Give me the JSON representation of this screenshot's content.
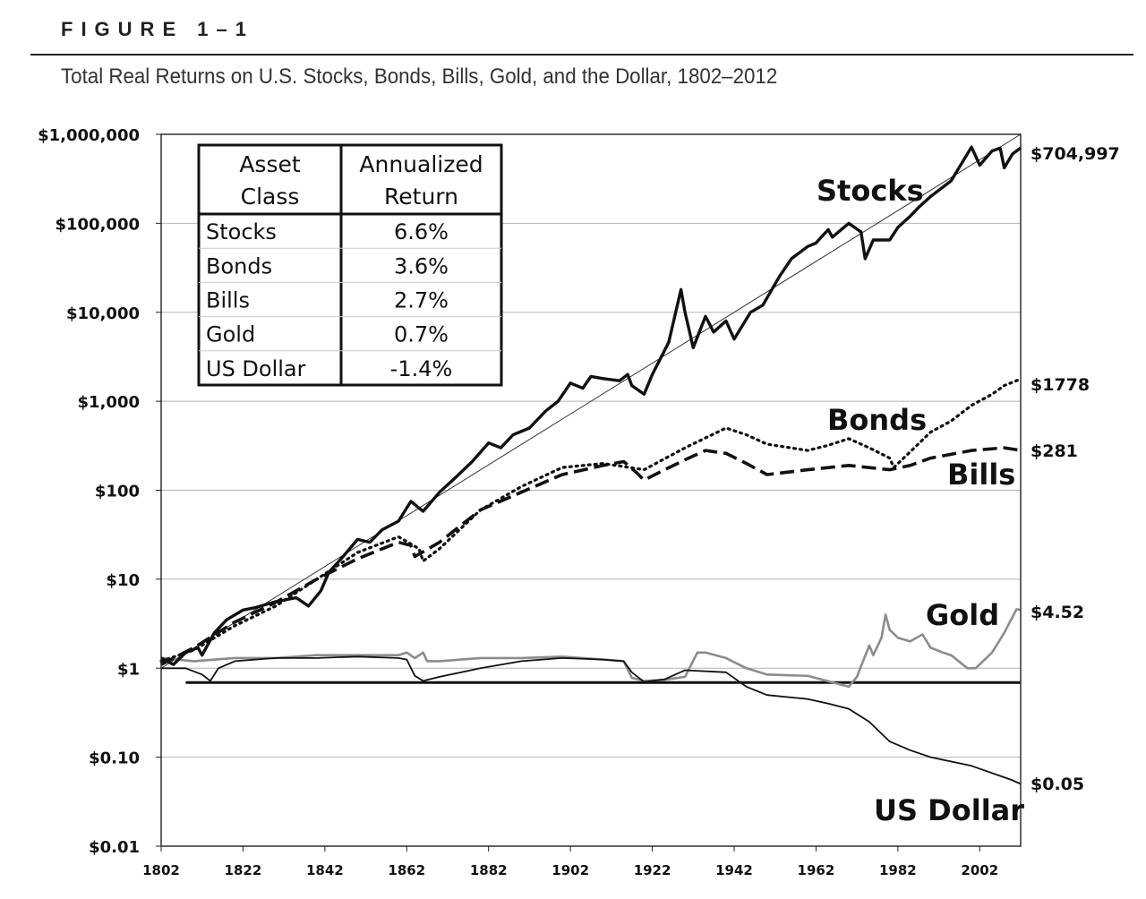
{
  "figure": {
    "label": "FIGURE 1–1",
    "title": "Total Real Returns on U.S. Stocks, Bonds, Bills, Gold, and the Dollar, 1802–2012"
  },
  "colors": {
    "stocks": "#111111",
    "bonds": "#111111",
    "bills": "#111111",
    "gold": "#8c8c8c",
    "dollar": "#111111",
    "grid": "#b5b5b5"
  },
  "chart_data": {
    "type": "line",
    "title": "Total Real Returns on U.S. Stocks, Bonds, Bills, Gold, and the Dollar, 1802–2012",
    "xlabel": "",
    "ylabel": "",
    "yscale": "log",
    "xlim": [
      1802,
      2012
    ],
    "ylim": [
      0.01,
      1000000
    ],
    "xticks": [
      1802,
      1822,
      1842,
      1862,
      1882,
      1902,
      1922,
      1942,
      1962,
      1982,
      2002
    ],
    "yticks": [
      {
        "value": 0.01,
        "label": "$0.01"
      },
      {
        "value": 0.1,
        "label": "$0.10"
      },
      {
        "value": 1,
        "label": "$1"
      },
      {
        "value": 10,
        "label": "$10"
      },
      {
        "value": 100,
        "label": "$100"
      },
      {
        "value": 1000,
        "label": "$1,000"
      },
      {
        "value": 10000,
        "label": "$10,000"
      },
      {
        "value": 100000,
        "label": "$100,000"
      },
      {
        "value": 1000000,
        "label": "$1,000,000"
      }
    ],
    "grid": true,
    "legend_table": {
      "headers": [
        [
          "Asset",
          "Class"
        ],
        [
          "Annualized",
          "Return"
        ]
      ],
      "rows": [
        {
          "asset": "Stocks",
          "return": "6.6%"
        },
        {
          "asset": "Bonds",
          "return": "3.6%"
        },
        {
          "asset": "Bills",
          "return": "2.7%"
        },
        {
          "asset": "Gold",
          "return": "0.7%"
        },
        {
          "asset": "US Dollar",
          "return": "-1.4%"
        }
      ],
      "position": "top-left"
    },
    "reference_lines": [
      {
        "name": "stocks-trend",
        "x": [
          1802,
          2012
        ],
        "y": [
          1,
          1000000
        ]
      },
      {
        "name": "dollar-baseline",
        "x": [
          1808,
          2012
        ],
        "y": [
          0.69,
          0.69
        ]
      }
    ],
    "series": [
      {
        "name": "Stocks",
        "label": "Stocks",
        "end_label": "$704,997",
        "style": "solid-thick",
        "x": [
          1802,
          1805,
          1808,
          1811,
          1812,
          1815,
          1818,
          1822,
          1825,
          1830,
          1835,
          1838,
          1841,
          1843,
          1846,
          1850,
          1853,
          1856,
          1860,
          1863,
          1866,
          1870,
          1874,
          1878,
          1882,
          1885,
          1888,
          1892,
          1896,
          1899,
          1902,
          1905,
          1907,
          1910,
          1914,
          1916,
          1917,
          1920,
          1922,
          1926,
          1929,
          1930,
          1932,
          1935,
          1937,
          1940,
          1942,
          1946,
          1949,
          1953,
          1956,
          1960,
          1962,
          1965,
          1966,
          1970,
          1973,
          1974,
          1976,
          1980,
          1982,
          1985,
          1987,
          1990,
          1995,
          2000,
          2002,
          2005,
          2007,
          2008,
          2010,
          2012
        ],
        "y": [
          1.3,
          1.1,
          1.5,
          1.7,
          1.4,
          2.5,
          3.5,
          4.5,
          4.8,
          5.6,
          6.2,
          5.0,
          7.4,
          12,
          17,
          28,
          26,
          36,
          45,
          75,
          58,
          95,
          140,
          210,
          340,
          300,
          420,
          500,
          780,
          1000,
          1600,
          1400,
          1900,
          1800,
          1700,
          2000,
          1500,
          1200,
          2000,
          4600,
          18000,
          10000,
          4000,
          9000,
          6000,
          8000,
          5000,
          10000,
          12000,
          25000,
          40000,
          55000,
          60000,
          85000,
          70000,
          100000,
          80000,
          40000,
          65000,
          65000,
          90000,
          120000,
          150000,
          200000,
          300000,
          720000,
          450000,
          650000,
          700000,
          420000,
          600000,
          704997
        ]
      },
      {
        "name": "Bonds",
        "label": "Bonds",
        "end_label": "$1778",
        "style": "dotted",
        "x": [
          1802,
          1810,
          1820,
          1830,
          1840,
          1850,
          1860,
          1865,
          1866,
          1870,
          1880,
          1890,
          1900,
          1910,
          1920,
          1930,
          1940,
          1945,
          1950,
          1960,
          1965,
          1970,
          1975,
          1980,
          1981,
          1985,
          1990,
          1995,
          2000,
          2005,
          2008,
          2012
        ],
        "y": [
          1.2,
          1.6,
          3.0,
          5.0,
          10,
          20,
          30,
          22,
          16,
          22,
          60,
          110,
          180,
          200,
          170,
          300,
          500,
          420,
          330,
          280,
          320,
          380,
          300,
          230,
          180,
          270,
          450,
          600,
          900,
          1200,
          1500,
          1778
        ]
      },
      {
        "name": "Bills",
        "label": "Bills",
        "end_label": "$281",
        "style": "dashed",
        "x": [
          1802,
          1810,
          1820,
          1830,
          1840,
          1850,
          1860,
          1863,
          1864,
          1870,
          1880,
          1890,
          1900,
          1910,
          1915,
          1918,
          1920,
          1925,
          1930,
          1935,
          1940,
          1945,
          1950,
          1960,
          1970,
          1980,
          1985,
          1990,
          2000,
          2008,
          2012
        ],
        "y": [
          1.1,
          1.7,
          3.3,
          5.5,
          10,
          17,
          26,
          24,
          18,
          26,
          60,
          95,
          150,
          190,
          210,
          160,
          130,
          170,
          220,
          280,
          260,
          200,
          150,
          170,
          190,
          170,
          190,
          230,
          280,
          300,
          281
        ]
      },
      {
        "name": "Gold",
        "label": "Gold",
        "end_label": "$4.52",
        "style": "solid-gray",
        "x": [
          1802,
          1810,
          1820,
          1830,
          1840,
          1850,
          1860,
          1862,
          1864,
          1866,
          1867,
          1870,
          1880,
          1890,
          1900,
          1910,
          1915,
          1917,
          1920,
          1925,
          1930,
          1933,
          1935,
          1940,
          1945,
          1950,
          1960,
          1970,
          1972,
          1975,
          1976,
          1978,
          1979,
          1980,
          1982,
          1985,
          1988,
          1990,
          1993,
          1995,
          1999,
          2001,
          2005,
          2008,
          2011,
          2012
        ],
        "y": [
          1.3,
          1.2,
          1.3,
          1.3,
          1.4,
          1.4,
          1.4,
          1.5,
          1.3,
          1.5,
          1.2,
          1.2,
          1.3,
          1.3,
          1.35,
          1.25,
          1.2,
          0.78,
          0.72,
          0.74,
          0.8,
          1.5,
          1.5,
          1.3,
          1.0,
          0.85,
          0.82,
          0.62,
          0.8,
          1.8,
          1.4,
          2.2,
          4.0,
          2.7,
          2.2,
          2.0,
          2.4,
          1.7,
          1.5,
          1.4,
          1.0,
          1.0,
          1.5,
          2.5,
          4.6,
          4.52
        ]
      },
      {
        "name": "US Dollar",
        "label": "US Dollar",
        "end_label": "$0.05",
        "style": "solid-thin",
        "x": [
          1802,
          1808,
          1812,
          1814,
          1816,
          1820,
          1830,
          1840,
          1850,
          1860,
          1862,
          1864,
          1866,
          1870,
          1880,
          1890,
          1900,
          1910,
          1915,
          1917,
          1920,
          1922,
          1925,
          1930,
          1940,
          1945,
          1950,
          1960,
          1965,
          1970,
          1975,
          1980,
          1985,
          1990,
          2000,
          2010,
          2012
        ],
        "y": [
          1.0,
          1.0,
          0.85,
          0.72,
          1.0,
          1.2,
          1.3,
          1.3,
          1.35,
          1.3,
          1.25,
          0.82,
          0.72,
          0.8,
          1.0,
          1.2,
          1.3,
          1.25,
          1.2,
          0.9,
          0.7,
          0.72,
          0.75,
          0.95,
          0.9,
          0.62,
          0.5,
          0.45,
          0.4,
          0.35,
          0.25,
          0.15,
          0.12,
          0.1,
          0.08,
          0.055,
          0.05
        ]
      }
    ]
  }
}
